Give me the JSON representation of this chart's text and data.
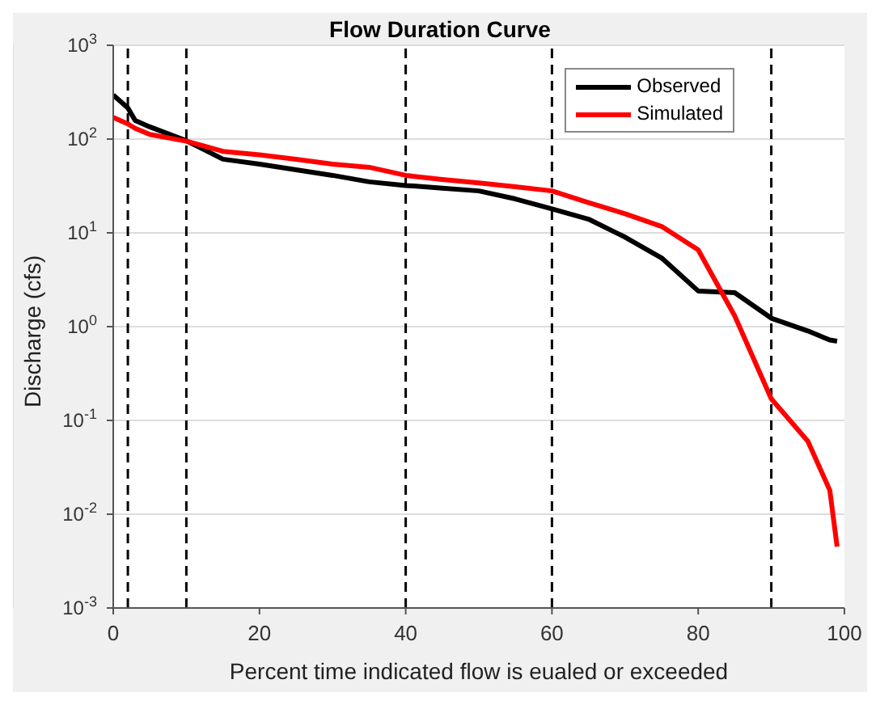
{
  "chart_data": {
    "type": "line",
    "title": "Flow Duration Curve",
    "xlabel": "Percent time indicated flow is eualed or exceeded",
    "ylabel": "Discharge (cfs)",
    "log": "y",
    "grid": true,
    "legend": "top right",
    "marker": "none",
    "line_style": "solid",
    "xlim": [
      0,
      100
    ],
    "xticks": [
      0,
      20,
      40,
      60,
      80,
      100
    ],
    "ylim": [
      0.001,
      1000
    ],
    "yticks": [
      {
        "value": 0.001,
        "label": "10$^{-3}$"
      },
      {
        "value": 0.01,
        "label": "10$^{-2}$"
      },
      {
        "value": 0.1,
        "label": "10$^{-1}$"
      },
      {
        "value": 1,
        "label": "10$^{0}$"
      },
      {
        "value": 10,
        "label": "10$^{1}$"
      },
      {
        "value": 100,
        "label": "10$^{2}$"
      },
      {
        "value": 1000,
        "label": "10$^{3}$"
      }
    ],
    "x": [
      0,
      2,
      3,
      5,
      10,
      15,
      20,
      25,
      30,
      35,
      40,
      45,
      50,
      55,
      60,
      65,
      70,
      75,
      80,
      85,
      90,
      95,
      98,
      99
    ],
    "series": [
      {
        "name": "Observed",
        "color": "#000000",
        "values": [
          295,
          215,
          158,
          135,
          96,
          61,
          54,
          47,
          41,
          35,
          32,
          30,
          28,
          23,
          18,
          14,
          9,
          5.4,
          2.4,
          2.3,
          1.23,
          0.9,
          0.72,
          0.7
        ]
      },
      {
        "name": "Simulated",
        "color": "#ff0000",
        "values": [
          170,
          145,
          130,
          112,
          95,
          74,
          68,
          61,
          54,
          50,
          41,
          37,
          34,
          31,
          28,
          21,
          16,
          11.7,
          6.6,
          1.3,
          0.17,
          0.06,
          0.018,
          0.0045
        ]
      }
    ],
    "ref_lines": [
      {
        "axis": "x",
        "value": 2,
        "color": "#000000",
        "line_style": "dashed"
      },
      {
        "axis": "x",
        "value": 10,
        "color": "#000000",
        "line_style": "dashed"
      },
      {
        "axis": "x",
        "value": 40,
        "color": "#000000",
        "line_style": "dashed"
      },
      {
        "axis": "x",
        "value": 60,
        "color": "#000000",
        "line_style": "dashed"
      },
      {
        "axis": "x",
        "value": 90,
        "color": "#000000",
        "line_style": "dashed"
      }
    ]
  }
}
